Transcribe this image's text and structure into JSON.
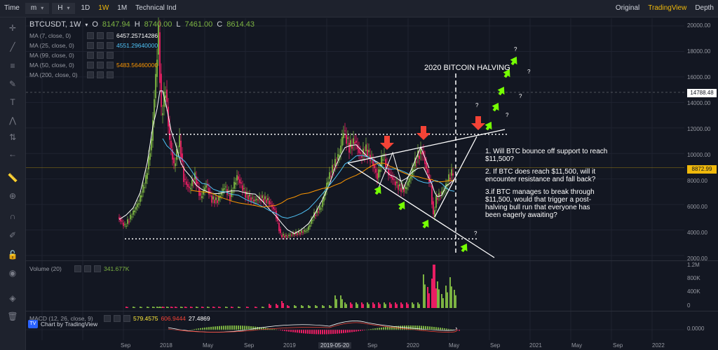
{
  "toolbar": {
    "time_label": "Time",
    "sel_m": "m",
    "sel_h": "H",
    "btn_1d": "1D",
    "btn_1w": "1W",
    "btn_1m": "1M",
    "btn_tech": "Technical Ind",
    "btn_original": "Original",
    "btn_tradingview": "TradingView",
    "btn_depth": "Depth"
  },
  "legend": {
    "symbol": "BTCUSDT, 1W",
    "o_label": "O",
    "o_val": "8147.94",
    "h_label": "H",
    "h_val": "8740.00",
    "l_label": "L",
    "l_val": "7461.00",
    "c_label": "C",
    "c_val": "8614.43",
    "indicators": [
      {
        "name": "MA (7, close, 0)",
        "value": "6457.25714286",
        "color": "#ffffff"
      },
      {
        "name": "MA (25, close, 0)",
        "value": "4551.29640000",
        "color": "#4fc3f7"
      },
      {
        "name": "MA (99, close, 0)",
        "value": "",
        "color": "#ffffff"
      },
      {
        "name": "MA (50, close, 0)",
        "value": "5483.56460000",
        "color": "#ff9800"
      },
      {
        "name": "MA (200, close, 0)",
        "value": "",
        "color": "#ffffff"
      }
    ],
    "volume_name": "Volume (20)",
    "volume_val": "341.677K",
    "macd_name": "MACD (12, 26, close, 9)",
    "macd_v1": "579.4575",
    "macd_v2": "606.9444",
    "macd_v3": "27.4869"
  },
  "price_axis": [
    "20000.00",
    "18000.00",
    "16000.00",
    "14000.00",
    "12000.00",
    "10000.00",
    "8000.00",
    "6000.00",
    "4000.00",
    "2000.00"
  ],
  "price_tag_14788": "14788.48",
  "price_tag_current": "8872.99",
  "volume_axis": [
    "1.2M",
    "800K",
    "400K",
    "0"
  ],
  "macd_axis": "0.0000",
  "date_axis": [
    {
      "label": "Sep"
    },
    {
      "label": "2018"
    },
    {
      "label": "May"
    },
    {
      "label": "Sep"
    },
    {
      "label": "2019"
    },
    {
      "label": "2019-05-20"
    },
    {
      "label": "Sep"
    },
    {
      "label": "2020"
    },
    {
      "label": "May"
    },
    {
      "label": "Sep"
    },
    {
      "label": "2021"
    },
    {
      "label": "May"
    },
    {
      "label": "Sep"
    },
    {
      "label": "2022"
    }
  ],
  "logo_text": "Chart by TradingView",
  "annotations": {
    "halving": "2020 BITCOIN HALVING",
    "q1a": "1. Will BTC bounce off support to reach",
    "q1b": "$11,500?",
    "q2a": "2. If BTC does reach $11,500, will it",
    "q2b": "encounter resistance and fall back?",
    "q3a": "3.if BTC manages to break through",
    "q3b": "$11,500, would that trigger a post-",
    "q3c": "halving bull run that everyone has",
    "q3d": "been eagerly awaiting?",
    "qmark": "?"
  },
  "colors": {
    "up": "#7cb342",
    "down": "#e91e63",
    "arrow_red": "#f44336",
    "arrow_green": "#76ff03",
    "ma25": "#4fc3f7",
    "ma50": "#ff9800",
    "bg": "#131722"
  }
}
